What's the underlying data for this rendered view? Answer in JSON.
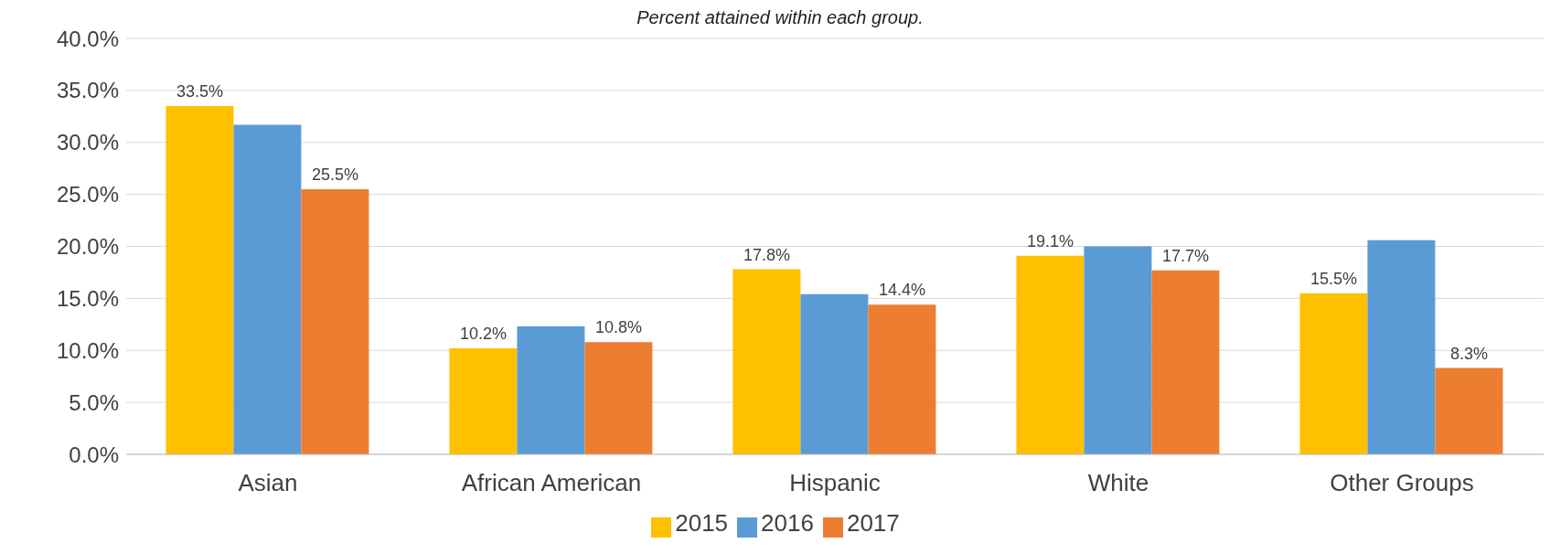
{
  "chart_data": {
    "type": "bar",
    "subtitle": "Percent attained within each group.",
    "categories": [
      "Asian",
      "African American",
      "Hispanic",
      "White",
      "Other Groups"
    ],
    "series": [
      {
        "name": "2015",
        "color": "#ffc000",
        "values": [
          33.5,
          10.2,
          17.8,
          19.1,
          15.5
        ],
        "value_labels": [
          "33.5%",
          "10.2%",
          "17.8%",
          "19.1%",
          "15.5%"
        ]
      },
      {
        "name": "2016",
        "color": "#5b9bd5",
        "values": [
          31.7,
          12.3,
          15.4,
          20.0,
          20.6
        ]
      },
      {
        "name": "2017",
        "color": "#ed7d31",
        "values": [
          25.5,
          10.8,
          14.4,
          17.7,
          8.3
        ],
        "value_labels": [
          "25.5%",
          "10.8%",
          "14.4%",
          "17.7%",
          "8.3%"
        ]
      }
    ],
    "ylim": [
      0,
      40
    ],
    "yticks": [
      {
        "value": 0,
        "label": "0.0%"
      },
      {
        "value": 5,
        "label": "5.0%"
      },
      {
        "value": 10,
        "label": "10.0%"
      },
      {
        "value": 15,
        "label": "15.0%"
      },
      {
        "value": 20,
        "label": "20.0%"
      },
      {
        "value": 25,
        "label": "25.0%"
      },
      {
        "value": 30,
        "label": "30.0%"
      },
      {
        "value": 35,
        "label": "35.0%"
      },
      {
        "value": 40,
        "label": "40.0%"
      }
    ],
    "grid": "y",
    "legend": "bottom"
  }
}
